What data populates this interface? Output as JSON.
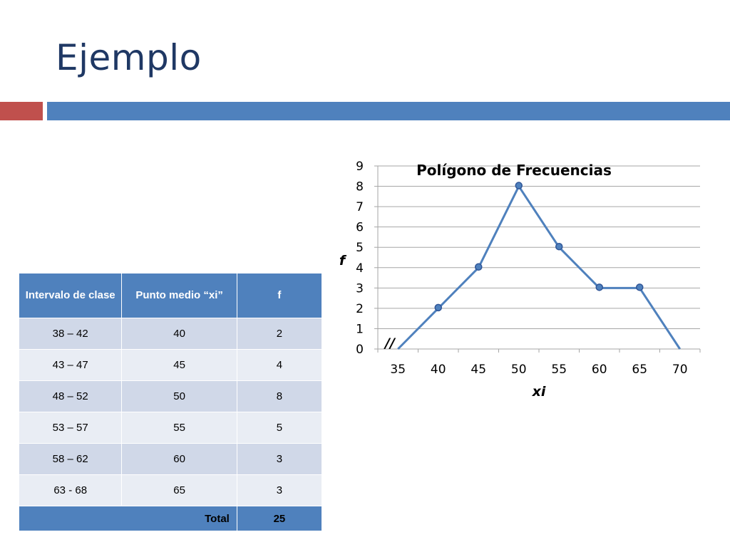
{
  "slide": {
    "title": "Ejemplo"
  },
  "table": {
    "headers": [
      "Intervalo de clase",
      "Punto medio “xi”",
      "f"
    ],
    "rows": [
      [
        "38 – 42",
        "40",
        "2"
      ],
      [
        "43 – 47",
        "45",
        "4"
      ],
      [
        "48 – 52",
        "50",
        "8"
      ],
      [
        "53 – 57",
        "55",
        "5"
      ],
      [
        "58 – 62",
        "60",
        "3"
      ],
      [
        "63   - 68",
        "65",
        "3"
      ]
    ],
    "total_label": "Total",
    "total_value": "25"
  },
  "chart_data": {
    "type": "line",
    "title": "Polígono de Frecuencias",
    "xlabel": "xi",
    "ylabel": "f",
    "x": [
      35,
      40,
      45,
      50,
      55,
      60,
      65,
      70
    ],
    "y": [
      0,
      2,
      4,
      8,
      5,
      3,
      3,
      0
    ],
    "markers_at": [
      40,
      45,
      50,
      55,
      60,
      65
    ],
    "y_ticks": [
      0,
      1,
      2,
      3,
      4,
      5,
      6,
      7,
      8,
      9
    ],
    "x_ticks": [
      35,
      40,
      45,
      50,
      55,
      60,
      65,
      70
    ],
    "ylim": [
      0,
      9
    ],
    "grid": true,
    "axis_break_mark": "//",
    "line_color": "#4F81BD",
    "marker_color": "#4F81BD"
  },
  "colors": {
    "title": "#1F3864",
    "accent_red": "#C0504D",
    "accent_blue": "#4F81BD"
  }
}
